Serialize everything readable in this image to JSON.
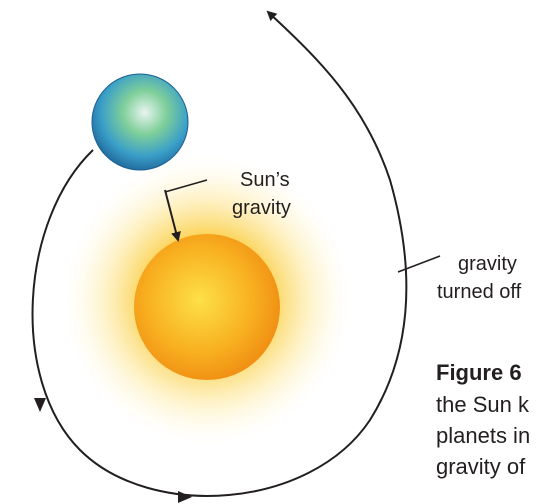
{
  "labels": {
    "sun_gravity": [
      "Sun’s",
      "gravity"
    ],
    "gravity_off": [
      "gravity",
      "turned off"
    ]
  },
  "caption": {
    "title": "Figure 6",
    "lines": [
      "the Sun k",
      "planets in",
      "gravity of"
    ]
  }
}
